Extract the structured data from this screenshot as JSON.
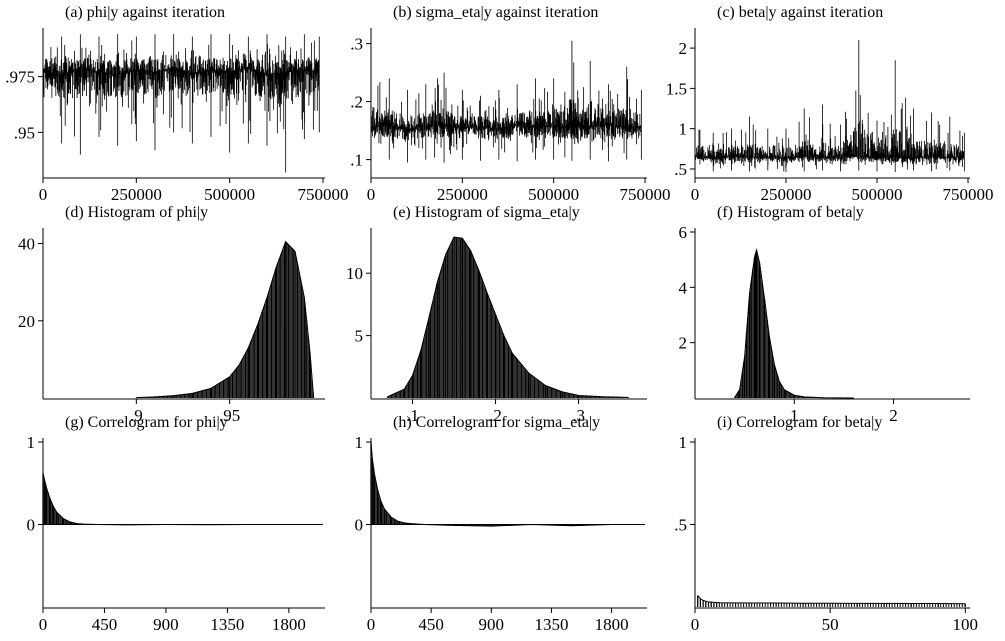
{
  "chart_data": [
    {
      "id": "a",
      "type": "line",
      "title": "(a) phi|y against iteration",
      "xlabel": "",
      "ylabel": "",
      "xlim": [
        0,
        750000
      ],
      "ylim": [
        0.93,
        0.995
      ],
      "xticks": [
        0,
        250000,
        500000,
        750000
      ],
      "xtick_labels": [
        "0",
        "250000",
        "500000",
        "750000"
      ],
      "yticks": [
        0.95,
        0.975
      ],
      "ytick_labels": [
        ".95",
        ".975"
      ],
      "series": [
        {
          "x": [
            0,
            50000,
            100000,
            150000,
            200000,
            250000,
            300000,
            350000,
            400000,
            450000,
            500000,
            550000,
            600000,
            650000,
            700000,
            740000
          ],
          "y": [
            0.978,
            0.975,
            0.979,
            0.977,
            0.976,
            0.978,
            0.977,
            0.979,
            0.976,
            0.978,
            0.977,
            0.979,
            0.976,
            0.977,
            0.978,
            0.977
          ],
          "ymin": [
            0.952,
            0.945,
            0.94,
            0.948,
            0.944,
            0.946,
            0.942,
            0.95,
            0.945,
            0.948,
            0.941,
            0.945,
            0.944,
            0.932,
            0.947,
            0.95
          ],
          "ymax": [
            0.994,
            0.993,
            0.994,
            0.993,
            0.994,
            0.993,
            0.994,
            0.994,
            0.993,
            0.994,
            0.994,
            0.993,
            0.994,
            0.993,
            0.994,
            0.993
          ]
        }
      ]
    },
    {
      "id": "b",
      "type": "line",
      "title": "(b) sigma_eta|y against iteration",
      "xlabel": "",
      "ylabel": "",
      "xlim": [
        0,
        750000
      ],
      "ylim": [
        0.07,
        0.32
      ],
      "xticks": [
        0,
        250000,
        500000,
        750000
      ],
      "xtick_labels": [
        "0",
        "250000",
        "500000",
        "750000"
      ],
      "yticks": [
        0.1,
        0.2,
        0.3
      ],
      "ytick_labels": [
        ".1",
        ".2",
        ".3"
      ],
      "series": [
        {
          "x": [
            0,
            50000,
            100000,
            150000,
            200000,
            250000,
            300000,
            350000,
            400000,
            450000,
            500000,
            550000,
            600000,
            650000,
            700000,
            740000
          ],
          "y": [
            0.155,
            0.16,
            0.152,
            0.158,
            0.16,
            0.155,
            0.157,
            0.153,
            0.16,
            0.156,
            0.158,
            0.155,
            0.157,
            0.16,
            0.154,
            0.156
          ],
          "ymin": [
            0.1,
            0.1,
            0.095,
            0.1,
            0.095,
            0.1,
            0.098,
            0.1,
            0.097,
            0.1,
            0.1,
            0.098,
            0.1,
            0.097,
            0.1,
            0.1
          ],
          "ymax": [
            0.26,
            0.24,
            0.22,
            0.23,
            0.25,
            0.22,
            0.21,
            0.22,
            0.23,
            0.24,
            0.24,
            0.305,
            0.27,
            0.23,
            0.26,
            0.22
          ]
        }
      ]
    },
    {
      "id": "c",
      "type": "line",
      "title": "(c) beta|y against iteration",
      "xlabel": "",
      "ylabel": "",
      "xlim": [
        0,
        750000
      ],
      "ylim": [
        0.4,
        2.2
      ],
      "xticks": [
        0,
        250000,
        500000,
        750000
      ],
      "xtick_labels": [
        "0",
        "250000",
        "500000",
        "750000"
      ],
      "yticks": [
        0.5,
        1,
        1.5,
        2
      ],
      "ytick_labels": [
        ".5",
        "1",
        "1.5",
        "2"
      ],
      "series": [
        {
          "x": [
            0,
            50000,
            100000,
            150000,
            200000,
            250000,
            300000,
            350000,
            400000,
            450000,
            500000,
            550000,
            600000,
            650000,
            700000,
            740000
          ],
          "y": [
            0.65,
            0.63,
            0.66,
            0.64,
            0.65,
            0.63,
            0.66,
            0.64,
            0.65,
            0.66,
            0.64,
            0.65,
            0.63,
            0.66,
            0.64,
            0.65
          ],
          "ymin": [
            0.48,
            0.47,
            0.48,
            0.47,
            0.48,
            0.46,
            0.47,
            0.48,
            0.47,
            0.48,
            0.47,
            0.46,
            0.48,
            0.47,
            0.48,
            0.47
          ],
          "ymax": [
            1.1,
            0.95,
            1.0,
            1.15,
            1.0,
            1.0,
            1.25,
            1.3,
            1.05,
            2.1,
            1.1,
            1.85,
            1.25,
            1.2,
            1.15,
            0.95
          ]
        }
      ]
    },
    {
      "id": "d",
      "type": "bar",
      "title": "(d) Histogram of phi|y",
      "xlabel": "",
      "ylabel": "",
      "xlim": [
        0.85,
        1.0
      ],
      "ylim": [
        0,
        43
      ],
      "xticks": [
        0.9,
        0.95
      ],
      "xtick_labels": [
        ".9",
        ".95"
      ],
      "yticks": [
        20,
        40
      ],
      "ytick_labels": [
        "20",
        "40"
      ],
      "series": [
        {
          "x": [
            0.9,
            0.91,
            0.92,
            0.93,
            0.94,
            0.95,
            0.955,
            0.96,
            0.965,
            0.97,
            0.975,
            0.98,
            0.985,
            0.99,
            0.993,
            0.995
          ],
          "values": [
            0.1,
            0.3,
            0.6,
            1.2,
            2.5,
            5.5,
            8.5,
            13,
            19,
            26,
            34,
            40.5,
            38,
            26,
            12,
            0
          ]
        }
      ]
    },
    {
      "id": "e",
      "type": "bar",
      "title": "(e) Histogram of sigma_eta|y",
      "xlabel": "",
      "ylabel": "",
      "xlim": [
        0.05,
        0.38
      ],
      "ylim": [
        0,
        13.3
      ],
      "xticks": [
        0.1,
        0.2,
        0.3
      ],
      "xtick_labels": [
        ".1",
        ".2",
        ".3"
      ],
      "yticks": [
        5,
        10
      ],
      "ytick_labels": [
        "5",
        "10"
      ],
      "series": [
        {
          "x": [
            0.07,
            0.09,
            0.1,
            0.11,
            0.12,
            0.13,
            0.14,
            0.15,
            0.16,
            0.17,
            0.18,
            0.19,
            0.2,
            0.21,
            0.22,
            0.24,
            0.26,
            0.28,
            0.3,
            0.33,
            0.36
          ],
          "values": [
            0.1,
            0.7,
            1.8,
            3.8,
            6.5,
            9.3,
            11.5,
            12.9,
            12.8,
            11.8,
            10.2,
            8.4,
            6.7,
            5.0,
            3.6,
            2.0,
            1.0,
            0.5,
            0.2,
            0.1,
            0.05
          ]
        }
      ]
    },
    {
      "id": "f",
      "type": "bar",
      "title": "(f) Histogram of beta|y",
      "xlabel": "",
      "ylabel": "",
      "xlim": [
        0.0,
        2.75
      ],
      "ylim": [
        0,
        6
      ],
      "xticks": [
        1,
        2
      ],
      "xtick_labels": [
        "1",
        "2"
      ],
      "yticks": [
        2,
        4,
        6
      ],
      "ytick_labels": [
        "2",
        "4",
        "6"
      ],
      "series": [
        {
          "x": [
            0.4,
            0.45,
            0.5,
            0.55,
            0.6,
            0.62,
            0.65,
            0.7,
            0.75,
            0.8,
            0.85,
            0.9,
            1.0,
            1.1,
            1.3,
            1.6
          ],
          "values": [
            0.02,
            0.3,
            1.5,
            3.8,
            5.1,
            5.35,
            4.9,
            3.6,
            2.2,
            1.2,
            0.6,
            0.3,
            0.1,
            0.04,
            0.01,
            0.0
          ]
        }
      ]
    },
    {
      "id": "g",
      "type": "bar",
      "title": "(g) Correlogram for phi|y",
      "xlabel": "",
      "ylabel": "",
      "xlim": [
        0,
        2050
      ],
      "ylim": [
        -1,
        1
      ],
      "xticks": [
        0,
        450,
        900,
        1350,
        1800
      ],
      "xtick_labels": [
        "0",
        "450",
        "900",
        "1350",
        "1800"
      ],
      "yticks": [
        0,
        1
      ],
      "ytick_labels": [
        "0",
        "1"
      ],
      "series": [
        {
          "x": [
            0,
            10,
            25,
            50,
            75,
            100,
            150,
            200,
            250,
            300,
            400,
            600,
            900,
            1200,
            1500,
            1800,
            2000
          ],
          "values": [
            0.62,
            0.55,
            0.45,
            0.32,
            0.22,
            0.15,
            0.07,
            0.03,
            0.01,
            0.005,
            0.0,
            -0.005,
            0.0,
            -0.003,
            0.0,
            0.0,
            0.0
          ]
        }
      ]
    },
    {
      "id": "h",
      "type": "bar",
      "title": "(h) Correlogram for sigma_eta|y",
      "xlabel": "",
      "ylabel": "",
      "xlim": [
        0,
        2050
      ],
      "ylim": [
        -1,
        1
      ],
      "xticks": [
        0,
        450,
        900,
        1350,
        1800
      ],
      "xtick_labels": [
        "0",
        "450",
        "900",
        "1350",
        "1800"
      ],
      "yticks": [
        0,
        1
      ],
      "ytick_labels": [
        "0",
        "1"
      ],
      "series": [
        {
          "x": [
            0,
            10,
            25,
            50,
            75,
            100,
            150,
            200,
            250,
            300,
            400,
            600,
            900,
            1200,
            1500,
            1800,
            2000
          ],
          "values": [
            1.0,
            0.8,
            0.62,
            0.42,
            0.28,
            0.19,
            0.09,
            0.04,
            0.02,
            0.01,
            0.0,
            -0.01,
            -0.02,
            0.0,
            -0.015,
            0.0,
            0.0
          ]
        }
      ]
    },
    {
      "id": "i",
      "type": "bar",
      "title": "(i) Correlogram for beta|y",
      "xlabel": "",
      "ylabel": "",
      "xlim": [
        0,
        101
      ],
      "ylim": [
        0,
        1
      ],
      "xticks": [
        0,
        50,
        100
      ],
      "xtick_labels": [
        "0",
        "50",
        "100"
      ],
      "yticks": [
        0.5,
        1
      ],
      "ytick_labels": [
        ".5",
        "1"
      ],
      "series": [
        {
          "x": [
            1,
            2,
            3,
            4,
            5,
            6,
            7,
            8,
            10,
            15,
            20,
            30,
            40,
            50,
            60,
            70,
            80,
            90,
            100
          ],
          "values": [
            0.07,
            0.05,
            0.04,
            0.035,
            0.03,
            0.03,
            0.028,
            0.027,
            0.025,
            0.025,
            0.024,
            0.024,
            0.023,
            0.023,
            0.022,
            0.022,
            0.021,
            0.021,
            0.02
          ]
        }
      ]
    }
  ]
}
